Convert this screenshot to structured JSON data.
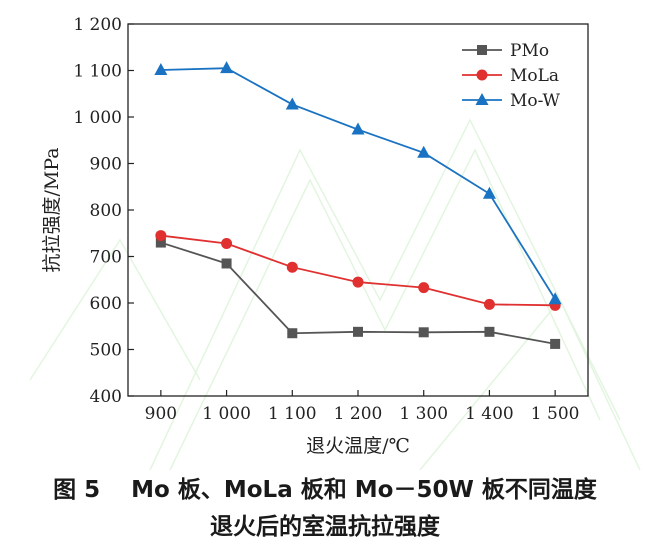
{
  "chart_data": {
    "type": "line",
    "x": [
      900,
      1000,
      1100,
      1200,
      1300,
      1400,
      1500
    ],
    "x_tick_labels": [
      "900",
      "1 000",
      "1 100",
      "1 200",
      "1 300",
      "1 400",
      "1 500"
    ],
    "xlim": [
      850,
      1550
    ],
    "ylim": [
      400,
      1200
    ],
    "y_ticks": [
      400,
      500,
      600,
      700,
      800,
      900,
      1000,
      1100,
      1200
    ],
    "y_tick_labels": [
      "400",
      "500",
      "600",
      "700",
      "800",
      "900",
      "1 000",
      "1 100",
      "1 200"
    ],
    "xlabel": "退火温度/℃",
    "ylabel": "抗拉强度/MPa",
    "legend_position": "top-right",
    "grid": false,
    "series": [
      {
        "name": "PMo",
        "color": "#555555",
        "marker": "square",
        "values": [
          730,
          685,
          535,
          538,
          537,
          538,
          512
        ]
      },
      {
        "name": "MoLa",
        "color": "#e03030",
        "marker": "circle",
        "values": [
          745,
          728,
          677,
          645,
          633,
          597,
          595
        ]
      },
      {
        "name": "Mo-W",
        "color": "#1a73c2",
        "marker": "triangle",
        "values": [
          1101,
          1105,
          1027,
          973,
          923,
          835,
          608
        ]
      }
    ]
  },
  "caption": {
    "line1": "图 5　 Mo 板、MoLa 板和 Mo－50W 板不同温度",
    "line2": "退火后的室温抗拉强度"
  }
}
